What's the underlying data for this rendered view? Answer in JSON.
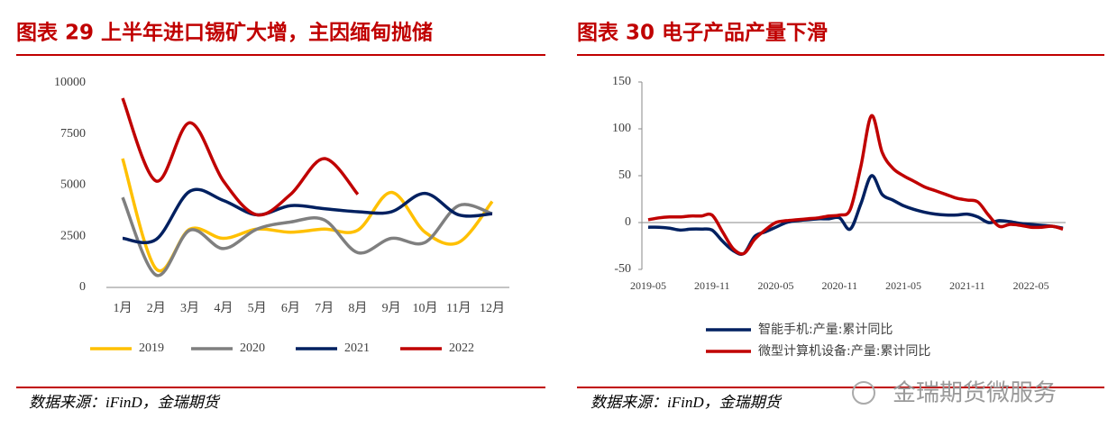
{
  "chart_data": [
    {
      "type": "line",
      "title": "图表 29 上半年进口锡矿大增，主因缅甸抛储",
      "source": "数据来源：iFinD，金瑞期货",
      "categories": [
        "1月",
        "2月",
        "3月",
        "4月",
        "5月",
        "6月",
        "7月",
        "8月",
        "9月",
        "10月",
        "11月",
        "12月"
      ],
      "ylim": [
        0,
        10000
      ],
      "yticks": [
        0,
        2500,
        5000,
        7500,
        10000
      ],
      "smooth": true,
      "legend": "bottom",
      "series": [
        {
          "name": "2019",
          "color": "#ffc000",
          "values": [
            6300,
            900,
            2850,
            2400,
            2850,
            2700,
            2850,
            2800,
            4650,
            2700,
            2200,
            4200
          ]
        },
        {
          "name": "2020",
          "color": "#7f7f7f",
          "values": [
            4400,
            600,
            2800,
            1900,
            2850,
            3200,
            3300,
            1700,
            2400,
            2200,
            4000,
            3600
          ]
        },
        {
          "name": "2021",
          "color": "#002060",
          "values": [
            2400,
            2350,
            4700,
            4250,
            3550,
            4000,
            3850,
            3700,
            3700,
            4600,
            3550,
            3600
          ]
        },
        {
          "name": "2022",
          "color": "#c00000",
          "values": [
            9250,
            5200,
            8050,
            5200,
            3550,
            4550,
            6300,
            4550,
            null,
            null,
            null,
            null
          ]
        }
      ]
    },
    {
      "type": "line",
      "title": "图表 30 电子产品产量下滑",
      "source": "数据来源：iFinD，金瑞期货",
      "x": [
        "2019-05",
        "2019-06",
        "2019-07",
        "2019-08",
        "2019-09",
        "2019-10",
        "2019-11",
        "2019-12",
        "2020-01",
        "2020-02",
        "2020-03",
        "2020-04",
        "2020-05",
        "2020-06",
        "2020-07",
        "2020-08",
        "2020-09",
        "2020-10",
        "2020-11",
        "2020-12",
        "2021-01",
        "2021-02",
        "2021-03",
        "2021-04",
        "2021-05",
        "2021-06",
        "2021-07",
        "2021-08",
        "2021-09",
        "2021-10",
        "2021-11",
        "2021-12",
        "2022-01",
        "2022-02",
        "2022-03",
        "2022-04",
        "2022-05",
        "2022-06",
        "2022-07",
        "2022-08"
      ],
      "xticks": [
        "2019-05",
        "2019-11",
        "2020-05",
        "2020-11",
        "2021-05",
        "2021-11",
        "2022-05"
      ],
      "ylim": [
        -50,
        150
      ],
      "yticks": [
        -50,
        0,
        50,
        100,
        150
      ],
      "smooth": true,
      "legend": "bottom",
      "series": [
        {
          "name": "智能手机:产量:累计同比",
          "color": "#002060",
          "values": [
            -5,
            -5,
            -6,
            -8,
            -7,
            -7,
            -8,
            -20,
            -30,
            -33,
            -15,
            -10,
            -5,
            0,
            2,
            3,
            4,
            4,
            5,
            -7,
            20,
            50,
            30,
            24,
            18,
            14,
            11,
            9,
            8,
            8,
            9,
            6,
            0,
            2,
            1,
            -1,
            -2,
            -3,
            -4,
            -6
          ]
        },
        {
          "name": "微型计算机设备:产量:累计同比",
          "color": "#c00000",
          "values": [
            3,
            5,
            6,
            6,
            7,
            7,
            8,
            -10,
            -28,
            -33,
            -18,
            -8,
            0,
            2,
            3,
            4,
            5,
            7,
            8,
            14,
            60,
            114,
            75,
            58,
            50,
            44,
            38,
            34,
            30,
            26,
            24,
            22,
            8,
            -4,
            -2,
            -3,
            -5,
            -5,
            -4,
            -7
          ]
        }
      ]
    }
  ],
  "watermark": "金瑞期货微服务"
}
